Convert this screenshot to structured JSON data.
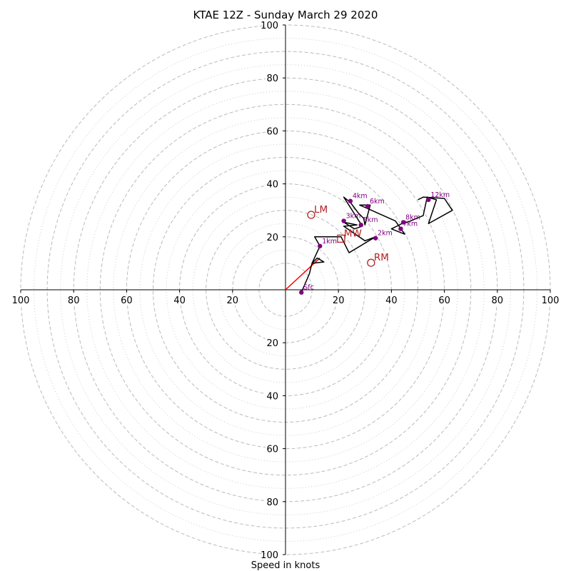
{
  "chart_data": {
    "type": "hodograph",
    "title": "KTAE 12Z - Sunday March 29 2020",
    "xlabel": "Speed in knots",
    "xlim": [
      -100,
      100
    ],
    "ylim": [
      -100,
      100
    ],
    "rings": {
      "dashed": [
        10,
        20,
        30,
        40,
        50,
        60,
        70,
        80,
        90,
        100
      ],
      "dotted": [
        15,
        25,
        35,
        45,
        55,
        65,
        75,
        85,
        95
      ]
    },
    "x_tick_values": [
      -100,
      -80,
      -60,
      -40,
      -20,
      20,
      40,
      60,
      80,
      100
    ],
    "x_tick_labels": [
      "100",
      "80",
      "60",
      "40",
      "20",
      "20",
      "40",
      "60",
      "80",
      "100"
    ],
    "y_tick_values": [
      100,
      80,
      60,
      40,
      20,
      -20,
      -40,
      -60,
      -80,
      -100
    ],
    "y_tick_labels": [
      "100",
      "80",
      "60",
      "40",
      "20",
      "20",
      "40",
      "60",
      "80",
      "100"
    ],
    "hodograph": {
      "u": [
        6,
        9,
        10,
        14.5,
        12,
        10,
        13,
        11,
        21,
        24,
        34,
        30,
        22,
        27,
        22,
        26,
        29,
        22,
        24.5,
        26,
        27.5,
        29.5,
        30,
        32,
        28,
        41.5,
        45,
        40,
        44,
        46,
        52,
        53.5,
        57,
        54,
        63,
        60,
        52,
        50
      ],
      "v": [
        -1,
        6,
        10,
        10.5,
        12,
        10,
        16.5,
        20,
        20,
        14,
        20,
        18.5,
        24,
        24.5,
        25.5,
        23,
        24,
        35,
        33,
        31,
        29,
        27,
        24.5,
        32,
        32,
        26,
        21,
        23,
        25,
        25.5,
        28,
        35,
        34,
        25,
        30,
        34.5,
        35,
        34
      ],
      "color": "#000000"
    },
    "height_markers": [
      {
        "label": "Sfc",
        "u": 6,
        "v": -1
      },
      {
        "label": "1km",
        "u": 13,
        "v": 16.5
      },
      {
        "label": "2km",
        "u": 34,
        "v": 19.5
      },
      {
        "label": "3km",
        "u": 22,
        "v": 26
      },
      {
        "label": "4km",
        "u": 24.5,
        "v": 33.5
      },
      {
        "label": "5km",
        "u": 28.5,
        "v": 24.5
      },
      {
        "label": "6km",
        "u": 31,
        "v": 31.5
      },
      {
        "label": "7km",
        "u": 43.5,
        "v": 23
      },
      {
        "label": "8km",
        "u": 44.5,
        "v": 25.5
      },
      {
        "label": "12km",
        "u": 54,
        "v": 34
      }
    ],
    "motions": [
      {
        "label": "LM",
        "u": 9.7,
        "v": 28.3,
        "marker": "circle"
      },
      {
        "label": "RM",
        "u": 32.3,
        "v": 10.2,
        "marker": "circle"
      },
      {
        "label": "MW",
        "u": 21,
        "v": 19.3,
        "marker": "square"
      }
    ],
    "shear_vector": {
      "u0": 0,
      "v0": 0,
      "u1": 13,
      "v1": 12,
      "color": "#ff0000"
    },
    "colors": {
      "height_marker": "#800080",
      "motion": "#b22222",
      "rings": "#bbbbbb",
      "rings_dotted": "#cccccc"
    }
  }
}
